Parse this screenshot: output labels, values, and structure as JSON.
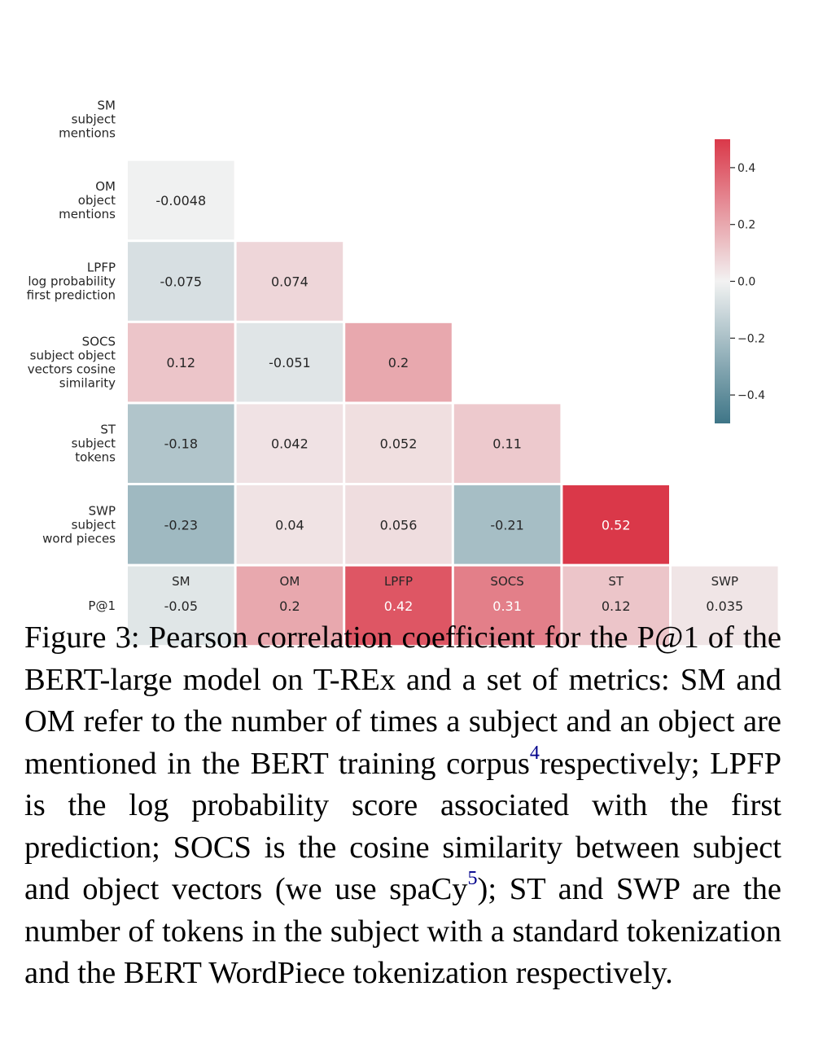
{
  "chart_data": {
    "type": "heatmap",
    "title": "",
    "row_labels": [
      [
        "SM",
        "subject",
        "mentions"
      ],
      [
        "OM",
        "object",
        "mentions"
      ],
      [
        "LPFP",
        "log probability",
        "first prediction"
      ],
      [
        "SOCS",
        "subject object",
        "vectors cosine",
        "similarity"
      ],
      [
        "ST",
        "subject",
        "tokens"
      ],
      [
        "SWP",
        "subject",
        "word pieces"
      ],
      [
        "P@1"
      ]
    ],
    "col_labels": [
      "SM",
      "OM",
      "LPFP",
      "SOCS",
      "ST",
      "SWP"
    ],
    "cells": [
      {
        "row": 1,
        "col": 0,
        "value": -0.0048,
        "label": "-0.0048"
      },
      {
        "row": 2,
        "col": 0,
        "value": -0.075,
        "label": "-0.075"
      },
      {
        "row": 2,
        "col": 1,
        "value": 0.074,
        "label": "0.074"
      },
      {
        "row": 3,
        "col": 0,
        "value": 0.12,
        "label": "0.12"
      },
      {
        "row": 3,
        "col": 1,
        "value": -0.051,
        "label": "-0.051"
      },
      {
        "row": 3,
        "col": 2,
        "value": 0.2,
        "label": "0.2"
      },
      {
        "row": 4,
        "col": 0,
        "value": -0.18,
        "label": "-0.18"
      },
      {
        "row": 4,
        "col": 1,
        "value": 0.042,
        "label": "0.042"
      },
      {
        "row": 4,
        "col": 2,
        "value": 0.052,
        "label": "0.052"
      },
      {
        "row": 4,
        "col": 3,
        "value": 0.11,
        "label": "0.11"
      },
      {
        "row": 5,
        "col": 0,
        "value": -0.23,
        "label": "-0.23"
      },
      {
        "row": 5,
        "col": 1,
        "value": 0.04,
        "label": "0.04"
      },
      {
        "row": 5,
        "col": 2,
        "value": 0.056,
        "label": "0.056"
      },
      {
        "row": 5,
        "col": 3,
        "value": -0.21,
        "label": "-0.21"
      },
      {
        "row": 5,
        "col": 4,
        "value": 0.52,
        "label": "0.52"
      },
      {
        "row": 6,
        "col": 0,
        "value": -0.05,
        "label": "-0.05"
      },
      {
        "row": 6,
        "col": 1,
        "value": 0.2,
        "label": "0.2"
      },
      {
        "row": 6,
        "col": 2,
        "value": 0.42,
        "label": "0.42"
      },
      {
        "row": 6,
        "col": 3,
        "value": 0.31,
        "label": "0.31"
      },
      {
        "row": 6,
        "col": 4,
        "value": 0.12,
        "label": "0.12"
      },
      {
        "row": 6,
        "col": 5,
        "value": 0.035,
        "label": "0.035"
      }
    ],
    "colorbar": {
      "vmin": -0.5,
      "vmax": 0.5,
      "ticks": [
        0.4,
        0.2,
        0.0,
        -0.2,
        -0.4
      ],
      "tick_labels": [
        "0.4",
        "0.2",
        "0.0",
        "−0.2",
        "−0.4"
      ]
    },
    "colors": {
      "negative": "#3e7587",
      "neutral": "#f2f2f2",
      "positive": "#da3849"
    }
  },
  "caption": {
    "figure_label": "Figure 3:",
    "part1": "Pearson correlation coefficient for the P@1 of the BERT-large model on T-REx and a set of met­rics: SM and OM refer to the number of times a sub­ject and an object are mentioned in the BERT training corpus",
    "footnote1": "4",
    "part2": "respectively; LPFP is the log probability score associated with the first prediction; SOCS is the co­sine similarity between subject and object vectors (we use spaCy",
    "footnote2": "5",
    "part3": "); ST and SWP are the number of tokens in the subject with a standard tokenization and the BERT WordPiece tokenization respectively."
  }
}
